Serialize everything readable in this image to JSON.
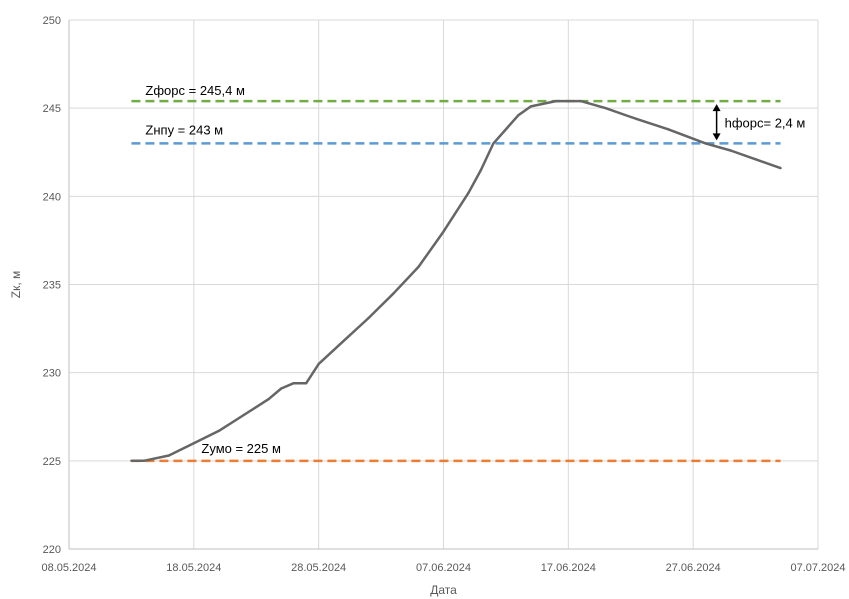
{
  "chart_data": {
    "type": "line",
    "title": "",
    "xlabel": "Дата",
    "ylabel": "Zк, м",
    "ylim": [
      220,
      250
    ],
    "xlim": [
      "2024-05-08",
      "2024-07-07"
    ],
    "grid": true,
    "x_tick_labels": [
      "08.05.2024",
      "18.05.2024",
      "28.05.2024",
      "07.06.2024",
      "17.06.2024",
      "27.06.2024",
      "07.07.2024"
    ],
    "y_tick_labels": [
      "220",
      "225",
      "230",
      "235",
      "240",
      "245",
      "250"
    ],
    "series": [
      {
        "color": "#666666",
        "points": [
          {
            "x": "2024-05-13",
            "y": 225.0
          },
          {
            "x": "2024-05-14",
            "y": 225.0
          },
          {
            "x": "2024-05-16",
            "y": 225.3
          },
          {
            "x": "2024-05-18",
            "y": 226.0
          },
          {
            "x": "2024-05-20",
            "y": 226.7
          },
          {
            "x": "2024-05-22",
            "y": 227.6
          },
          {
            "x": "2024-05-24",
            "y": 228.5
          },
          {
            "x": "2024-05-25",
            "y": 229.1
          },
          {
            "x": "2024-05-26",
            "y": 229.4
          },
          {
            "x": "2024-05-27",
            "y": 229.4
          },
          {
            "x": "2024-05-28",
            "y": 230.5
          },
          {
            "x": "2024-05-30",
            "y": 231.8
          },
          {
            "x": "2024-06-01",
            "y": 233.1
          },
          {
            "x": "2024-06-03",
            "y": 234.5
          },
          {
            "x": "2024-06-05",
            "y": 236.0
          },
          {
            "x": "2024-06-07",
            "y": 238.0
          },
          {
            "x": "2024-06-09",
            "y": 240.2
          },
          {
            "x": "2024-06-10",
            "y": 241.5
          },
          {
            "x": "2024-06-11",
            "y": 243.0
          },
          {
            "x": "2024-06-13",
            "y": 244.6
          },
          {
            "x": "2024-06-14",
            "y": 245.1
          },
          {
            "x": "2024-06-16",
            "y": 245.4
          },
          {
            "x": "2024-06-18",
            "y": 245.4
          },
          {
            "x": "2024-06-20",
            "y": 245.0
          },
          {
            "x": "2024-06-22",
            "y": 244.5
          },
          {
            "x": "2024-06-25",
            "y": 243.8
          },
          {
            "x": "2024-06-28",
            "y": 243.0
          },
          {
            "x": "2024-06-30",
            "y": 242.6
          },
          {
            "x": "2024-07-02",
            "y": 242.1
          },
          {
            "x": "2024-07-04",
            "y": 241.6
          }
        ]
      }
    ],
    "reference_lines": [
      {
        "label": "Zфорс = 245,4 м",
        "y": 245.4,
        "color": "#70ad47",
        "x_start": "2024-05-13",
        "x_end": "2024-07-04"
      },
      {
        "label": "Zнпу = 243 м",
        "y": 243.0,
        "color": "#5b9bd5",
        "x_start": "2024-05-13",
        "x_end": "2024-07-04"
      },
      {
        "label": "Zумо = 225 м",
        "y": 225.0,
        "color": "#ed7d31",
        "x_start": "2024-05-13",
        "x_end": "2024-07-04"
      }
    ],
    "annotations": [
      {
        "label": "hфорс= 2,4 м",
        "y_from": 243.0,
        "y_to": 245.4,
        "x": "2024-06-30"
      }
    ]
  }
}
